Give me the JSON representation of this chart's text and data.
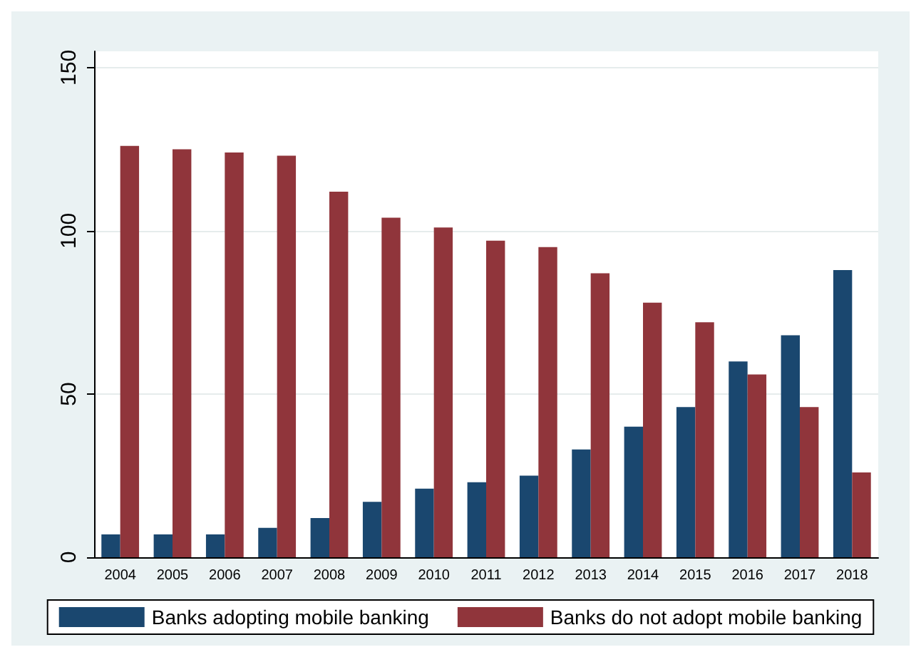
{
  "chart_data": {
    "type": "bar",
    "categories": [
      "2004",
      "2005",
      "2006",
      "2007",
      "2008",
      "2009",
      "2010",
      "2011",
      "2012",
      "2013",
      "2014",
      "2015",
      "2016",
      "2017",
      "2018"
    ],
    "series": [
      {
        "name": "Banks adopting mobile banking",
        "color": "#1a476f",
        "values": [
          7,
          7,
          7,
          9,
          12,
          17,
          21,
          23,
          25,
          33,
          40,
          46,
          60,
          68,
          88
        ]
      },
      {
        "name": "Banks do not adopt mobile banking",
        "color": "#90353b",
        "values": [
          126,
          125,
          124,
          123,
          112,
          104,
          101,
          97,
          95,
          87,
          78,
          72,
          56,
          46,
          26
        ]
      }
    ],
    "ylim": [
      0,
      155
    ],
    "yticks": [
      0,
      50,
      100,
      150
    ],
    "grid": "y",
    "legend": "bottom"
  }
}
